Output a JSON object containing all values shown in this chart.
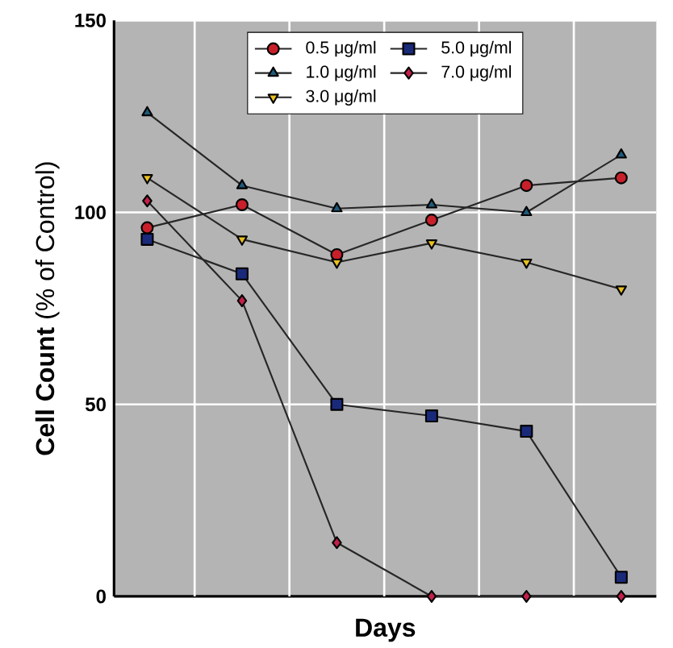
{
  "chart_data": {
    "type": "line",
    "xlabel": "Days",
    "ylabel": "**Cell Count** (% of Control)",
    "categories": [
      null,
      null,
      null,
      null,
      null,
      null
    ],
    "ylim": [
      0,
      150
    ],
    "yticks": [
      0,
      50,
      100,
      150
    ],
    "grid": true,
    "legend": "top",
    "line_style": "solid",
    "series": [
      {
        "name": "0.5 μg/ml",
        "color": "#c8202a",
        "marker": "circle",
        "values": [
          96,
          102,
          89,
          98,
          107,
          109
        ]
      },
      {
        "name": "1.0 μg/ml",
        "color": "#1f5a7a",
        "marker": "triangle",
        "values": [
          126,
          107,
          101,
          102,
          100,
          115
        ]
      },
      {
        "name": "3.0 μg/ml",
        "color": "#e8c020",
        "marker": "triangle down",
        "values": [
          109,
          93,
          87,
          92,
          87,
          80
        ]
      },
      {
        "name": "5.0 μg/ml",
        "color": "#1a2a7a",
        "marker": "square",
        "values": [
          93,
          84,
          50,
          47,
          43,
          5
        ]
      },
      {
        "name": "7.0 μg/ml",
        "color": "#c0204a",
        "marker": "diamond",
        "values": [
          103,
          77,
          14,
          0,
          0,
          0
        ]
      }
    ]
  }
}
